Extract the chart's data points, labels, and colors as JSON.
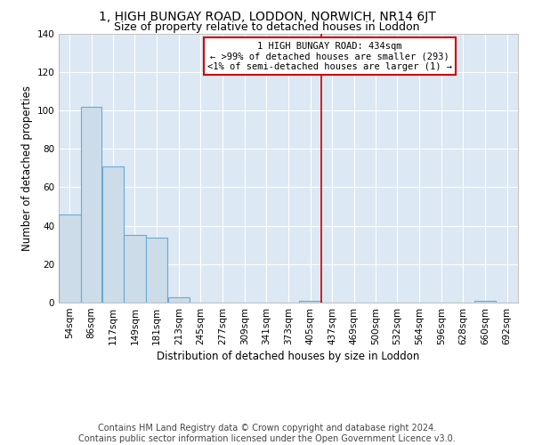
{
  "title1": "1, HIGH BUNGAY ROAD, LODDON, NORWICH, NR14 6JT",
  "title2": "Size of property relative to detached houses in Loddon",
  "xlabel": "Distribution of detached houses by size in Loddon",
  "ylabel": "Number of detached properties",
  "bar_edges": [
    54,
    86,
    117,
    149,
    181,
    213,
    245,
    277,
    309,
    341,
    373,
    405,
    437,
    469,
    500,
    532,
    564,
    596,
    628,
    660,
    692
  ],
  "bar_heights": [
    46,
    102,
    71,
    35,
    34,
    3,
    0,
    0,
    0,
    0,
    0,
    1,
    0,
    0,
    0,
    0,
    0,
    0,
    0,
    1,
    0
  ],
  "bar_color": "#ccdce9",
  "bar_edge_color": "#6aaad4",
  "property_line_x": 437,
  "property_line_color": "#cc0000",
  "annotation_text": "1 HIGH BUNGAY ROAD: 434sqm\n← >99% of detached houses are smaller (293)\n<1% of semi-detached houses are larger (1) →",
  "annotation_box_color": "#ffffff",
  "annotation_border_color": "#cc0000",
  "ylim": [
    0,
    140
  ],
  "yticks": [
    0,
    20,
    40,
    60,
    80,
    100,
    120,
    140
  ],
  "footer_text": "Contains HM Land Registry data © Crown copyright and database right 2024.\nContains public sector information licensed under the Open Government Licence v3.0.",
  "background_color": "#dce8f3",
  "grid_color": "#ffffff",
  "title1_fontsize": 10,
  "title2_fontsize": 9,
  "axis_label_fontsize": 8.5,
  "tick_fontsize": 7.5,
  "footer_fontsize": 7
}
